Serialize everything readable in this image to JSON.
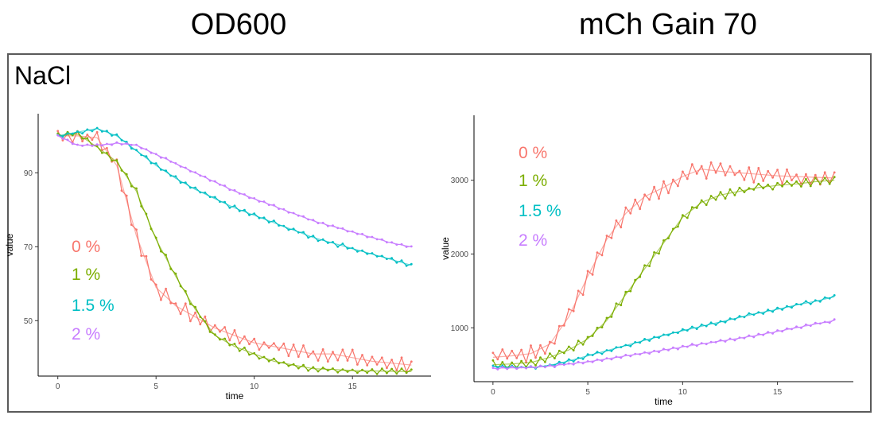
{
  "titles": {
    "left": "OD600",
    "right": "mCh Gain 70"
  },
  "row_label": "NaCl",
  "chart_data": [
    {
      "type": "line",
      "title": "OD600",
      "xlabel": "time",
      "ylabel": "value",
      "xlim": [
        -1,
        19
      ],
      "ylim": [
        35,
        106
      ],
      "xticks": [
        0,
        5,
        10,
        15
      ],
      "yticks": [
        50,
        70,
        90
      ],
      "grid": false,
      "legend": "left",
      "x": [
        0,
        1,
        2,
        3,
        4,
        5,
        6,
        7,
        8,
        9,
        10,
        11,
        12,
        13,
        14,
        15,
        16,
        17,
        18
      ],
      "series": [
        {
          "name": "0 %",
          "color": "#F8766D",
          "noise": 2.2,
          "values": [
            100,
            100,
            99.5,
            92,
            73,
            59,
            54,
            51,
            48,
            46,
            44,
            43,
            42,
            41,
            41,
            40,
            39,
            38.5,
            38
          ]
        },
        {
          "name": "1 %",
          "color": "#7CAE00",
          "noise": 0.8,
          "values": [
            100,
            100.5,
            97,
            93,
            85,
            72,
            62,
            53,
            46,
            43,
            41,
            39,
            38,
            37,
            36.8,
            36.5,
            36.4,
            36.3,
            36.2
          ]
        },
        {
          "name": "1.5 %",
          "color": "#00BFC4",
          "noise": 0.6,
          "values": [
            100,
            101,
            102,
            100,
            96,
            92,
            88.5,
            85.5,
            83,
            80.5,
            78.5,
            76.5,
            74.5,
            72.5,
            71,
            69.5,
            68,
            66.5,
            65
          ]
        },
        {
          "name": "2 %",
          "color": "#C77CFF",
          "noise": 0.3,
          "values": [
            100,
            97.5,
            97.5,
            98,
            97.5,
            95,
            92.5,
            90,
            87.5,
            85,
            83,
            81,
            79,
            77,
            75.5,
            74,
            72.5,
            71,
            70
          ]
        }
      ]
    },
    {
      "type": "line",
      "title": "mCh Gain 70",
      "xlabel": "time",
      "ylabel": "value",
      "xlim": [
        -1,
        19
      ],
      "ylim": [
        270,
        3880
      ],
      "xticks": [
        0,
        5,
        10,
        15
      ],
      "yticks": [
        1000,
        2000,
        3000
      ],
      "grid": false,
      "legend": "left",
      "x": [
        0,
        1,
        2,
        3,
        4,
        5,
        6,
        7,
        8,
        9,
        10,
        11,
        12,
        13,
        14,
        15,
        16,
        17,
        18
      ],
      "series": [
        {
          "name": "0 %",
          "color": "#F8766D",
          "noise": 120,
          "values": [
            600,
            620,
            650,
            780,
            1150,
            1700,
            2200,
            2550,
            2780,
            2900,
            3050,
            3150,
            3120,
            3100,
            3080,
            3060,
            3050,
            3040,
            3030
          ]
        },
        {
          "name": "1 %",
          "color": "#7CAE00",
          "noise": 60,
          "values": [
            500,
            510,
            530,
            600,
            700,
            850,
            1100,
            1450,
            1800,
            2150,
            2500,
            2700,
            2800,
            2850,
            2900,
            2930,
            2950,
            2980,
            3000
          ]
        },
        {
          "name": "1.5 %",
          "color": "#00BFC4",
          "noise": 25,
          "values": [
            480,
            470,
            460,
            490,
            550,
            620,
            690,
            760,
            830,
            900,
            960,
            1020,
            1080,
            1140,
            1200,
            1250,
            1310,
            1360,
            1420
          ]
        },
        {
          "name": "2 %",
          "color": "#C77CFF",
          "noise": 20,
          "values": [
            450,
            455,
            460,
            480,
            510,
            540,
            580,
            620,
            660,
            700,
            740,
            780,
            820,
            860,
            900,
            950,
            1000,
            1050,
            1100
          ]
        }
      ]
    }
  ]
}
